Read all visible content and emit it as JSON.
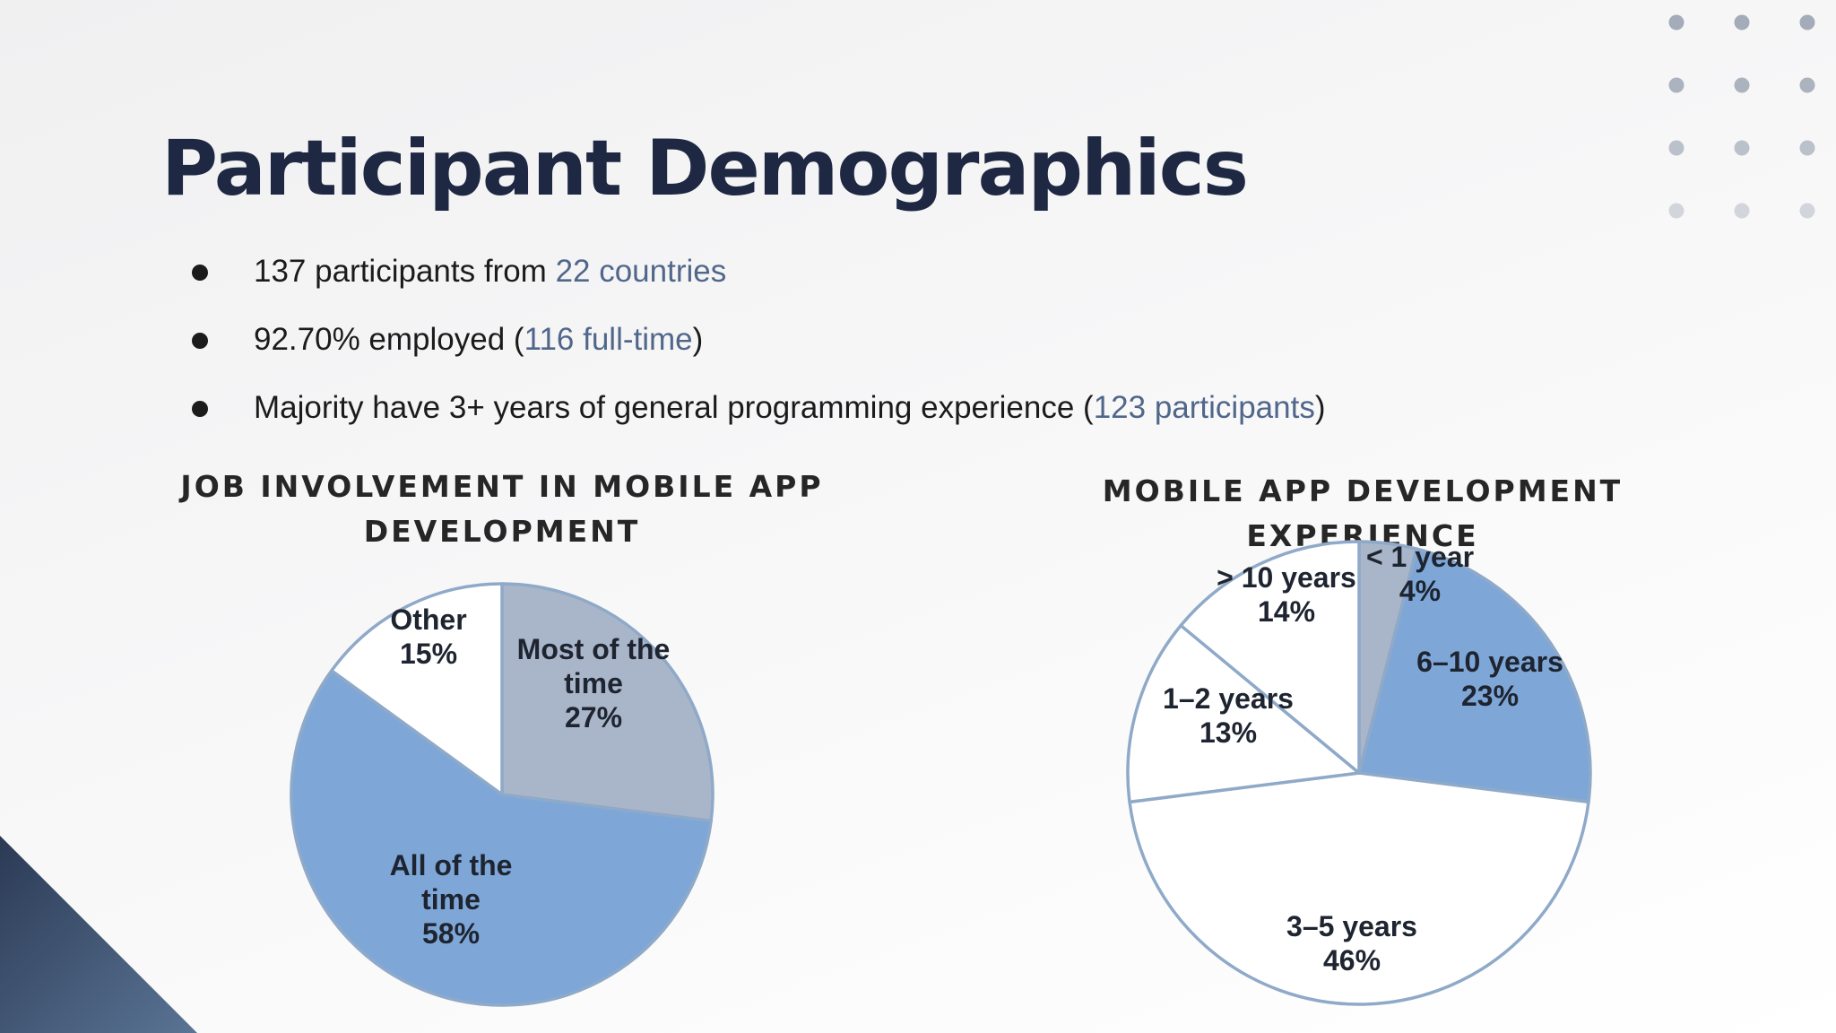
{
  "slide": {
    "title": "Participant Demographics",
    "bullets": [
      {
        "pre": "137 participants from ",
        "hl": "22 countries",
        "post": ""
      },
      {
        "pre": "92.70% employed (",
        "hl": "116 full-time",
        "post": ")"
      },
      {
        "pre": "Majority have 3+ years of general programming experience (",
        "hl": "123 participants",
        "post": ")"
      }
    ]
  },
  "colors": {
    "title": "#1e2843",
    "highlight": "#51678a",
    "slice_gray": "#a9b6c9",
    "slice_blue": "#7ea7d8",
    "slice_white": "#ffffff",
    "slice_outline": "#8fa9c8",
    "dots": "#a3acb8",
    "triangle_top": "#2b3a55",
    "triangle_bottom": "#5a7494"
  },
  "chart_data": [
    {
      "type": "pie",
      "title_lines": [
        "JOB INVOLVEMENT IN MOBILE APP",
        "DEVELOPMENT"
      ],
      "slices": [
        {
          "label_lines": [
            "Most of the",
            "time"
          ],
          "value": 27,
          "pct": "27%",
          "color": "#a9b6c9"
        },
        {
          "label_lines": [
            "All of the",
            "time"
          ],
          "value": 58,
          "pct": "58%",
          "color": "#7ea7d8"
        },
        {
          "label_lines": [
            "Other"
          ],
          "value": 15,
          "pct": "15%",
          "color": "#ffffff"
        }
      ]
    },
    {
      "type": "pie",
      "title_lines": [
        "MOBILE APP DEVELOPMENT EXPERIENCE"
      ],
      "slices": [
        {
          "label_lines": [
            "< 1 year"
          ],
          "value": 4,
          "pct": "4%",
          "color": "#a9b6c9"
        },
        {
          "label_lines": [
            "6–10 years"
          ],
          "value": 23,
          "pct": "23%",
          "color": "#7ea7d8"
        },
        {
          "label_lines": [
            "3–5 years"
          ],
          "value": 46,
          "pct": "46%",
          "color": "#ffffff"
        },
        {
          "label_lines": [
            "1–2 years"
          ],
          "value": 13,
          "pct": "13%",
          "color": "#ffffff"
        },
        {
          "label_lines": [
            "> 10 years"
          ],
          "value": 14,
          "pct": "14%",
          "color": "#ffffff"
        }
      ]
    }
  ]
}
